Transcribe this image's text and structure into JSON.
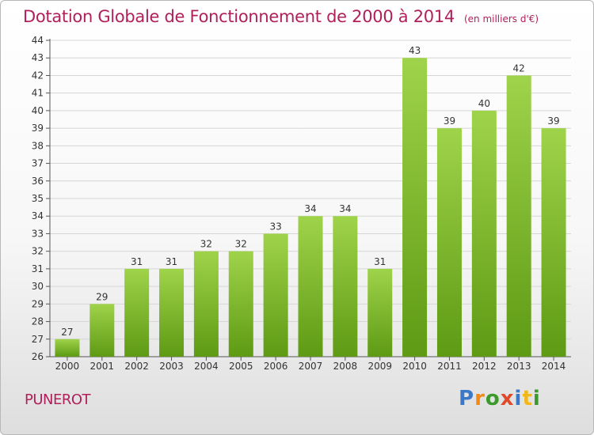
{
  "header": {
    "title": "Dotation Globale de Fonctionnement de 2000 à 2014",
    "unit": "(en milliers d'€)"
  },
  "footer": {
    "commune": "PUNEROT",
    "logo": "Proxiti"
  },
  "colors": {
    "bar_top": "#9fd34a",
    "bar_bottom": "#5e9a14",
    "title": "#b0205a",
    "logo": [
      "#3a78c8",
      "#f08a18",
      "#3a9a2a",
      "#e04a2a",
      "#3a78c8",
      "#f0b818",
      "#3a9a2a"
    ]
  },
  "chart_data": {
    "type": "bar",
    "categories": [
      "2000",
      "2001",
      "2002",
      "2003",
      "2004",
      "2005",
      "2006",
      "2007",
      "2008",
      "2009",
      "2010",
      "2011",
      "2012",
      "2013",
      "2014"
    ],
    "values": [
      27,
      29,
      31,
      31,
      32,
      32,
      33,
      34,
      34,
      31,
      43,
      39,
      40,
      42,
      39
    ],
    "ylim": [
      26,
      44
    ],
    "yticks": [
      26,
      27,
      28,
      29,
      30,
      31,
      32,
      33,
      34,
      35,
      36,
      37,
      38,
      39,
      40,
      41,
      42,
      43,
      44
    ],
    "grid": true,
    "data_labels": true
  }
}
